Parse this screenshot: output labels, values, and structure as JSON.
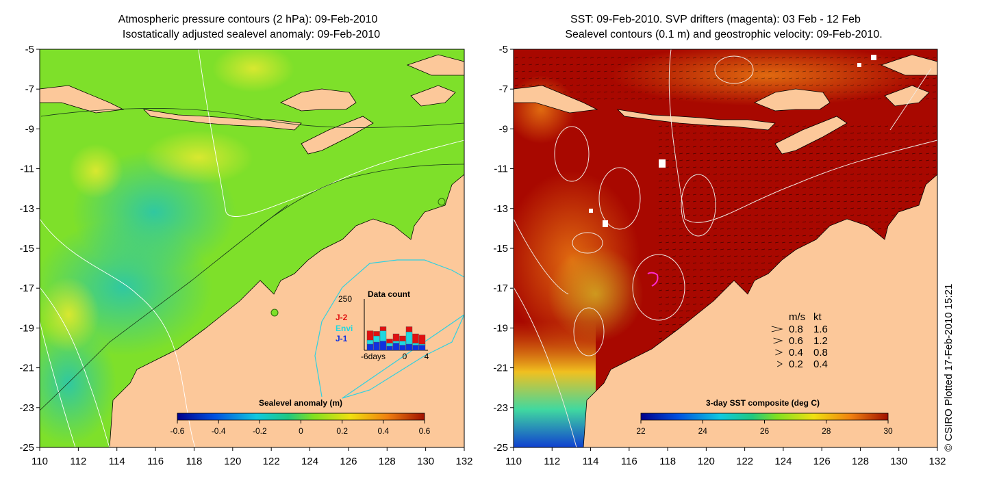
{
  "left_panel": {
    "title_line1": "Atmospheric pressure contours (2 hPa): 09-Feb-2010",
    "title_line2": "Isostatically adjusted sealevel anomaly: 09-Feb-2010",
    "colorbar_label": "Sealevel anomaly (m)",
    "colorbar_ticks": [
      "-0.6",
      "-0.4",
      "-0.2",
      "0",
      "0.2",
      "0.4",
      "0.6"
    ],
    "inset": {
      "title": "Data count",
      "y_tick": "250",
      "x_ticks": [
        "-6days",
        "0",
        "4"
      ],
      "legend": [
        {
          "label": "J-2",
          "color": "#e01010"
        },
        {
          "label": "Envi",
          "color": "#20d8e0"
        },
        {
          "label": "J-1",
          "color": "#1030e0"
        }
      ],
      "bars": [
        {
          "j1": 30,
          "envi": 20,
          "j2": 45
        },
        {
          "j1": 40,
          "envi": 30,
          "j2": 22
        },
        {
          "j1": 45,
          "envi": 50,
          "j2": 20
        },
        {
          "j1": 20,
          "envi": 15,
          "j2": 20
        },
        {
          "j1": 35,
          "envi": 10,
          "j2": 35
        },
        {
          "j1": 25,
          "envi": 20,
          "j2": 25
        },
        {
          "j1": 30,
          "envi": 60,
          "j2": 25
        },
        {
          "j1": 25,
          "envi": 10,
          "j2": 45
        },
        {
          "j1": 25,
          "envi": 5,
          "j2": 45
        }
      ]
    }
  },
  "right_panel": {
    "title_line1": "SST: 09-Feb-2010. SVP drifters (magenta): 03 Feb - 12 Feb",
    "title_line2": "Sealevel contours (0.1 m) and geostrophic velocity: 09-Feb-2010.",
    "colorbar_label": "3-day SST composite (deg C)",
    "colorbar_ticks": [
      "22",
      "24",
      "26",
      "28",
      "30"
    ],
    "velocity_legend": {
      "header_ms": "m/s",
      "header_kt": "kt",
      "rows": [
        {
          "ms": "0.8",
          "kt": "1.6"
        },
        {
          "ms": "0.6",
          "kt": "1.2"
        },
        {
          "ms": "0.4",
          "kt": "0.8"
        },
        {
          "ms": "0.2",
          "kt": "0.4"
        }
      ]
    }
  },
  "axes": {
    "lat_ticks": [
      "-5",
      "-7",
      "-9",
      "-11",
      "-13",
      "-15",
      "-17",
      "-19",
      "-21",
      "-23",
      "-25"
    ],
    "lon_ticks": [
      "110",
      "112",
      "114",
      "116",
      "118",
      "120",
      "122",
      "124",
      "126",
      "128",
      "130",
      "132"
    ]
  },
  "credit": "© CSIRO Plotted 17-Feb-2010 15:21",
  "colors": {
    "land": "#fcc89a",
    "sla_base": "#7ee02a",
    "sst_base": "#a80800",
    "contour": "#ffffff"
  }
}
